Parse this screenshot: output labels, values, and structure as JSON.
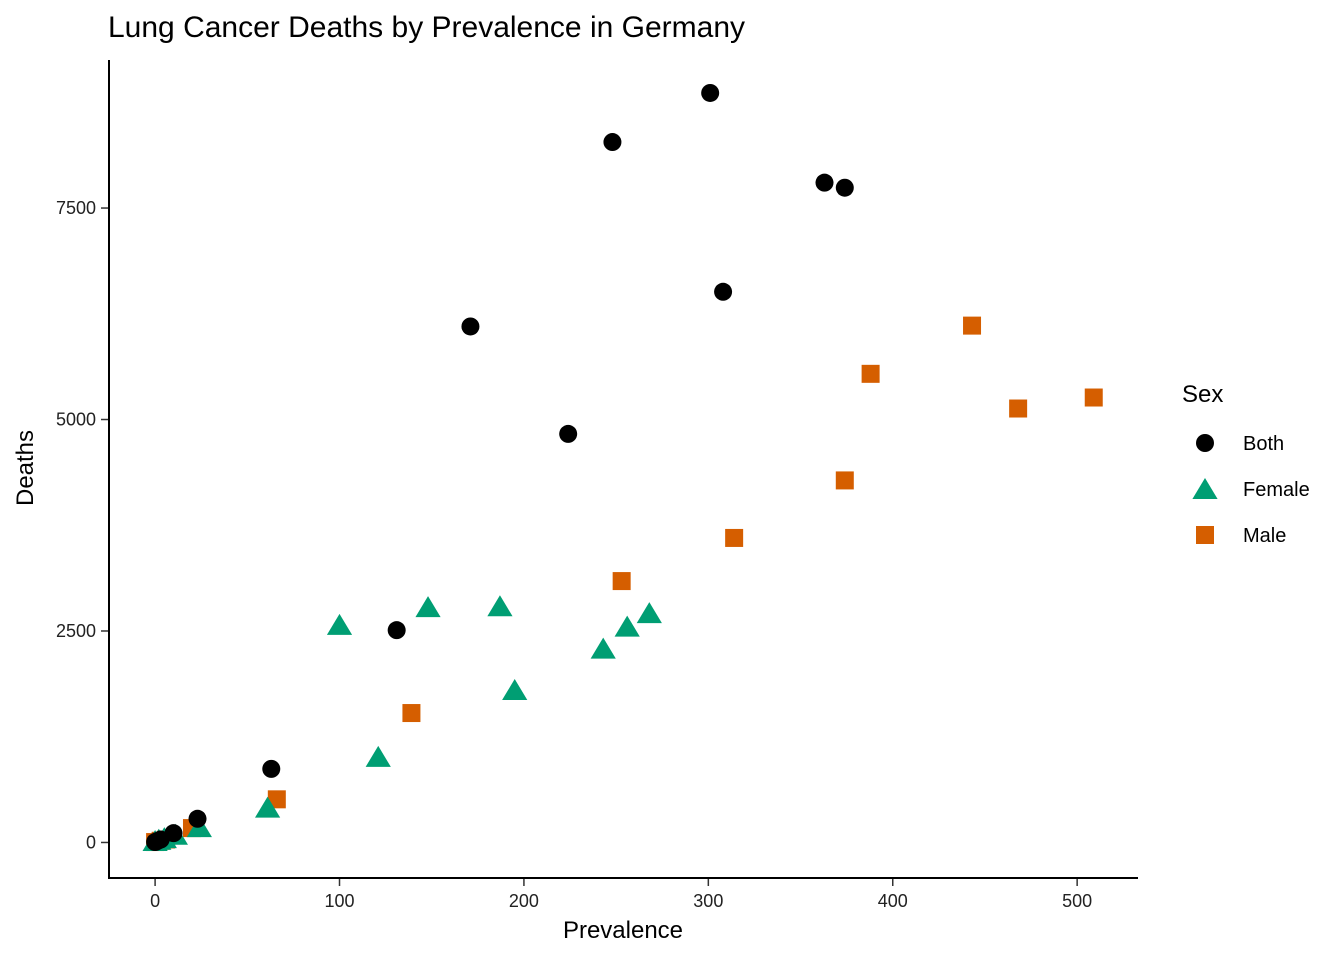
{
  "chart_data": {
    "type": "scatter",
    "title": "Lung Cancer Deaths by Prevalence in Germany",
    "xlabel": "Prevalence",
    "ylabel": "Deaths",
    "xlim": [
      -25,
      533
    ],
    "ylim": [
      -420,
      9250
    ],
    "xticks": [
      0,
      100,
      200,
      300,
      400,
      500
    ],
    "yticks": [
      0,
      2500,
      5000,
      7500
    ],
    "grid": false,
    "legend": {
      "title": "Sex",
      "position": "right",
      "entries": [
        "Both",
        "Female",
        "Male"
      ]
    },
    "colors": {
      "Both": "#000000",
      "Female": "#009E73",
      "Male": "#D55E00"
    },
    "series": [
      {
        "name": "Both",
        "shape": "circle",
        "points": [
          {
            "x": 0,
            "y": 5
          },
          {
            "x": 1,
            "y": 15
          },
          {
            "x": 3,
            "y": 35
          },
          {
            "x": 10,
            "y": 110
          },
          {
            "x": 23,
            "y": 280
          },
          {
            "x": 63,
            "y": 870
          },
          {
            "x": 131,
            "y": 2510
          },
          {
            "x": 171,
            "y": 6100
          },
          {
            "x": 224,
            "y": 4830
          },
          {
            "x": 248,
            "y": 8280
          },
          {
            "x": 301,
            "y": 8860
          },
          {
            "x": 308,
            "y": 6510
          },
          {
            "x": 363,
            "y": 7800
          },
          {
            "x": 374,
            "y": 7740
          }
        ]
      },
      {
        "name": "Female",
        "shape": "triangle",
        "points": [
          {
            "x": 0,
            "y": 5
          },
          {
            "x": 2,
            "y": 20
          },
          {
            "x": 5,
            "y": 40
          },
          {
            "x": 11,
            "y": 80
          },
          {
            "x": 24,
            "y": 170
          },
          {
            "x": 61,
            "y": 400
          },
          {
            "x": 100,
            "y": 2560
          },
          {
            "x": 121,
            "y": 1000
          },
          {
            "x": 148,
            "y": 2770
          },
          {
            "x": 187,
            "y": 2780
          },
          {
            "x": 195,
            "y": 1790
          },
          {
            "x": 243,
            "y": 2280
          },
          {
            "x": 256,
            "y": 2540
          },
          {
            "x": 268,
            "y": 2700
          }
        ]
      },
      {
        "name": "Male",
        "shape": "square",
        "points": [
          {
            "x": 0,
            "y": 5
          },
          {
            "x": 3,
            "y": 20
          },
          {
            "x": 6,
            "y": 35
          },
          {
            "x": 20,
            "y": 170
          },
          {
            "x": 66,
            "y": 510
          },
          {
            "x": 139,
            "y": 1530
          },
          {
            "x": 253,
            "y": 3090
          },
          {
            "x": 314,
            "y": 3600
          },
          {
            "x": 374,
            "y": 4280
          },
          {
            "x": 388,
            "y": 5540
          },
          {
            "x": 443,
            "y": 6110
          },
          {
            "x": 468,
            "y": 5130
          },
          {
            "x": 509,
            "y": 5260
          }
        ]
      }
    ]
  }
}
